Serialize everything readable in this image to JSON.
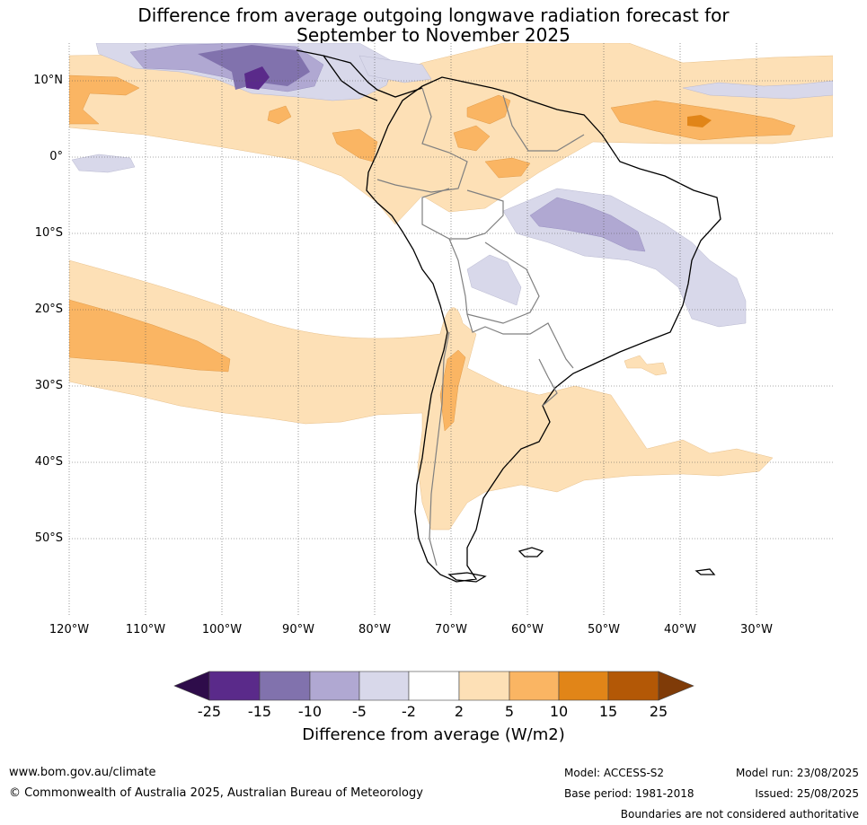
{
  "title": {
    "line1": "Difference from average outgoing longwave radiation forecast for",
    "line2": "September to November 2025"
  },
  "axes": {
    "lat_labels": [
      "10°N",
      "0°",
      "10°S",
      "20°S",
      "30°S",
      "40°S",
      "50°S"
    ],
    "lon_labels": [
      "120°W",
      "110°W",
      "100°W",
      "90°W",
      "80°W",
      "70°W",
      "60°W",
      "50°W",
      "40°W",
      "30°W"
    ]
  },
  "legend": {
    "label": "Difference from average (W/m2)",
    "ticks": [
      "-25",
      "-15",
      "-10",
      "-5",
      "-2",
      "2",
      "5",
      "10",
      "15",
      "25"
    ],
    "colors": [
      "#2e0c4a",
      "#5a2a8a",
      "#8172ad",
      "#b0a8d2",
      "#d8d8ea",
      "#ffffff",
      "#fde0b6",
      "#fab563",
      "#e18518",
      "#b35806",
      "#7f3b08"
    ]
  },
  "footer": {
    "website": "www.bom.gov.au/climate",
    "copyright": "© Commonwealth of Australia 2025, Australian Bureau of Meteorology",
    "model": "Model: ACCESS-S2",
    "base_period": "Base period: 1981-2018",
    "model_run": "Model run: 23/08/2025",
    "issued": "Issued: 25/08/2025",
    "disclaimer": "Boundaries are not considered authoritative"
  }
}
